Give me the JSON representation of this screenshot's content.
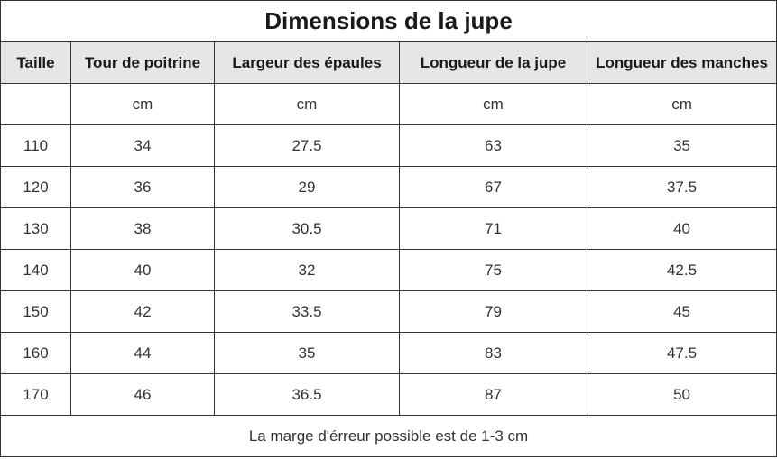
{
  "title": "Dimensions de la jupe",
  "headers": [
    "Taille",
    "Tour de poitrine",
    "Largeur des épaules",
    "Longueur de la jupe",
    "Longueur des manches"
  ],
  "units": [
    "",
    "cm",
    "cm",
    "cm",
    "cm"
  ],
  "rows": [
    [
      "110",
      "34",
      "27.5",
      "63",
      "35"
    ],
    [
      "120",
      "36",
      "29",
      "67",
      "37.5"
    ],
    [
      "130",
      "38",
      "30.5",
      "71",
      "40"
    ],
    [
      "140",
      "40",
      "32",
      "75",
      "42.5"
    ],
    [
      "150",
      "42",
      "33.5",
      "79",
      "45"
    ],
    [
      "160",
      "44",
      "35",
      "83",
      "47.5"
    ],
    [
      "170",
      "46",
      "36.5",
      "87",
      "50"
    ]
  ],
  "note": "La marge d'érreur possible est de 1-3 cm"
}
